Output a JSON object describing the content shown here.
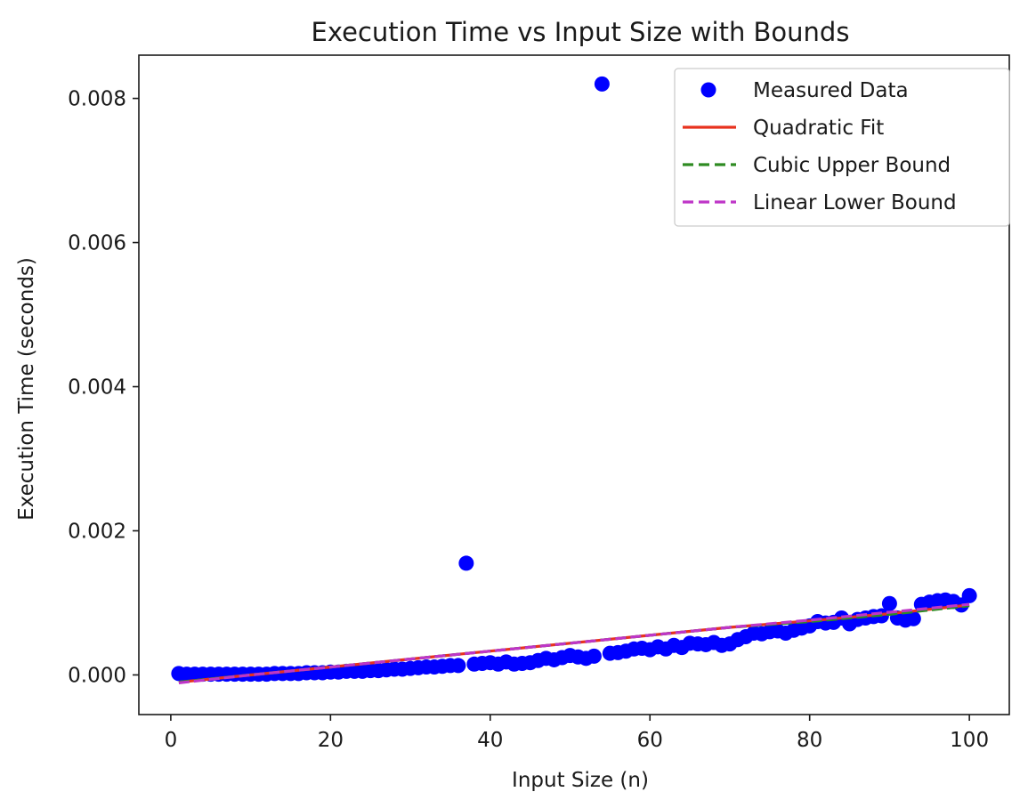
{
  "chart_data": {
    "type": "scatter",
    "title": "Execution Time vs Input Size with Bounds",
    "xlabel": "Input Size (n)",
    "ylabel": "Execution Time (seconds)",
    "xlim": [
      -4,
      105
    ],
    "ylim": [
      -0.00055,
      0.0086
    ],
    "xticks": [
      0,
      20,
      40,
      60,
      80,
      100
    ],
    "xtick_labels": [
      "0",
      "20",
      "40",
      "60",
      "80",
      "100"
    ],
    "yticks": [
      0.0,
      0.002,
      0.004,
      0.006,
      0.008
    ],
    "ytick_labels": [
      "0.000",
      "0.002",
      "0.004",
      "0.006",
      "0.008"
    ],
    "grid": false,
    "legend_position": "top-right",
    "series": [
      {
        "name": "Measured Data",
        "kind": "scatter",
        "color": "#0000ff",
        "x": [
          1,
          2,
          3,
          4,
          5,
          6,
          7,
          8,
          9,
          10,
          11,
          12,
          13,
          14,
          15,
          16,
          17,
          18,
          19,
          20,
          21,
          22,
          23,
          24,
          25,
          26,
          27,
          28,
          29,
          30,
          31,
          32,
          33,
          34,
          35,
          36,
          37,
          38,
          39,
          40,
          41,
          42,
          43,
          44,
          45,
          46,
          47,
          48,
          49,
          50,
          51,
          52,
          53,
          54,
          55,
          56,
          57,
          58,
          59,
          60,
          61,
          62,
          63,
          64,
          65,
          66,
          67,
          68,
          69,
          70,
          71,
          72,
          73,
          74,
          75,
          76,
          77,
          78,
          79,
          80,
          81,
          82,
          83,
          84,
          85,
          86,
          87,
          88,
          89,
          90,
          91,
          92,
          93,
          94,
          95,
          96,
          97,
          98,
          99,
          100
        ],
        "y": [
          2e-05,
          1e-05,
          1e-05,
          1e-05,
          1e-05,
          1e-05,
          1e-05,
          1e-05,
          1e-05,
          1e-05,
          1e-05,
          1e-05,
          2e-05,
          2e-05,
          2e-05,
          2e-05,
          3e-05,
          3e-05,
          3e-05,
          4e-05,
          4e-05,
          5e-05,
          5e-05,
          5e-05,
          6e-05,
          6e-05,
          7e-05,
          8e-05,
          8e-05,
          9e-05,
          0.0001,
          0.00011,
          0.00011,
          0.00012,
          0.00013,
          0.00013,
          0.00155,
          0.00015,
          0.00016,
          0.00017,
          0.00015,
          0.00018,
          0.00015,
          0.00016,
          0.00017,
          0.0002,
          0.00023,
          0.00021,
          0.00024,
          0.00027,
          0.00025,
          0.00023,
          0.00026,
          0.0082,
          0.0003,
          0.00031,
          0.00033,
          0.00036,
          0.00037,
          0.00035,
          0.00039,
          0.00036,
          0.00041,
          0.00038,
          0.00044,
          0.00043,
          0.00042,
          0.00045,
          0.00041,
          0.00043,
          0.00049,
          0.00053,
          0.00058,
          0.00057,
          0.0006,
          0.00061,
          0.00058,
          0.00062,
          0.00065,
          0.00068,
          0.00074,
          0.00072,
          0.00073,
          0.00079,
          0.00071,
          0.00077,
          0.00079,
          0.00081,
          0.00082,
          0.00099,
          0.00079,
          0.00076,
          0.00078,
          0.00098,
          0.00101,
          0.00103,
          0.00104,
          0.00102,
          0.00097,
          0.0011
        ]
      },
      {
        "name": "Quadratic Fit",
        "kind": "line",
        "style": "solid",
        "color": "#e8321e",
        "x": [
          1,
          10,
          20,
          30,
          40,
          50,
          60,
          70,
          80,
          90,
          100
        ],
        "y": [
          -0.0001,
          0.0,
          0.00011,
          0.00022,
          0.00033,
          0.00044,
          0.00055,
          0.00066,
          0.00075,
          0.00085,
          0.00097
        ]
      },
      {
        "name": "Cubic Upper Bound",
        "kind": "line",
        "style": "dashed",
        "color": "#2e8b22",
        "x": [
          1,
          10,
          20,
          30,
          40,
          50,
          60,
          70,
          80,
          90,
          100
        ],
        "y": [
          -0.0001,
          0.0,
          0.00011,
          0.00022,
          0.00033,
          0.00044,
          0.00055,
          0.00066,
          0.00074,
          0.00084,
          0.00096
        ]
      },
      {
        "name": "Linear Lower Bound",
        "kind": "line",
        "style": "dashed",
        "color": "#bf35c8",
        "x": [
          1,
          10,
          20,
          30,
          40,
          50,
          60,
          70,
          80,
          90,
          100
        ],
        "y": [
          -0.00011,
          0.0,
          0.00011,
          0.00022,
          0.00033,
          0.00044,
          0.00055,
          0.00066,
          0.00076,
          0.00087,
          0.00098
        ]
      }
    ]
  }
}
